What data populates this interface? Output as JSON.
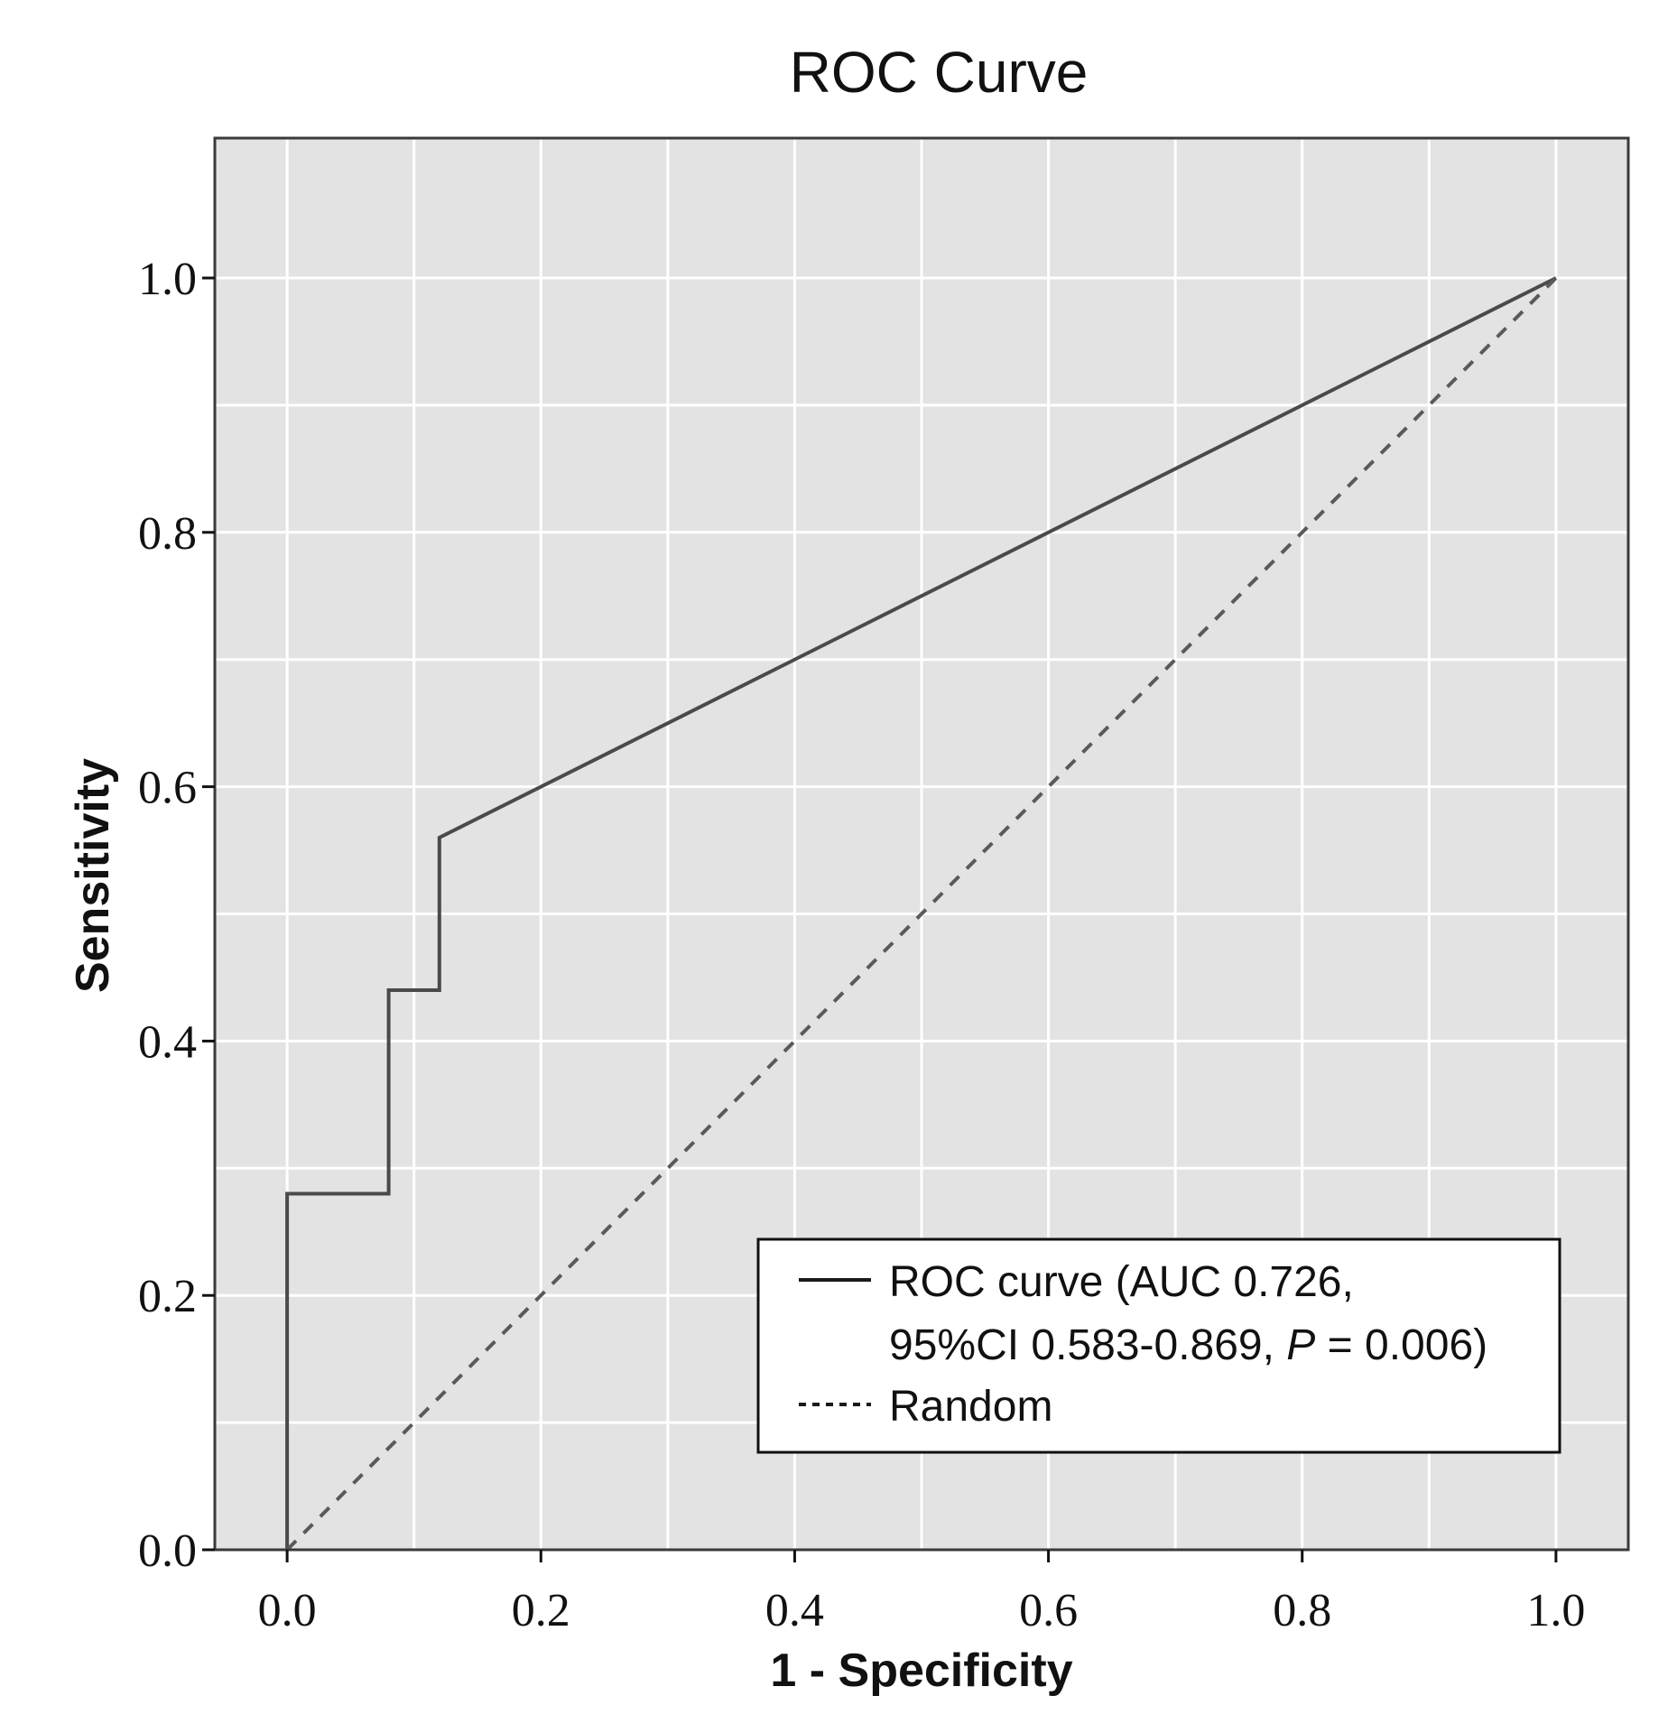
{
  "chart_data": {
    "type": "line",
    "title": "ROC Curve",
    "xlabel": "1 - Specificity",
    "ylabel": "Sensitivity",
    "xlim": [
      -0.057,
      1.057
    ],
    "ylim": [
      0,
      1.11
    ],
    "x_ticks": [
      0.0,
      0.2,
      0.4,
      0.6,
      0.8,
      1.0
    ],
    "x_tick_labels": [
      "0.0",
      "0.2",
      "0.4",
      "0.6",
      "0.8",
      "1.0"
    ],
    "y_ticks": [
      0.0,
      0.2,
      0.4,
      0.6,
      0.8,
      1.0
    ],
    "y_tick_labels": [
      "0.0",
      "0.2",
      "0.4",
      "0.6",
      "0.8",
      "1.0"
    ],
    "grid": true,
    "legend_position": "bottom-right",
    "series": [
      {
        "name": "ROC curve",
        "style": "solid",
        "color": "#4a4a4a",
        "x": [
          0.0,
          0.0,
          0.08,
          0.08,
          0.12,
          0.12,
          1.0
        ],
        "y": [
          0.0,
          0.28,
          0.28,
          0.44,
          0.44,
          0.56,
          1.0
        ]
      },
      {
        "name": "Random",
        "style": "dashed",
        "color": "#5a5a5a",
        "x": [
          0.0,
          1.0
        ],
        "y": [
          0.0,
          1.0
        ]
      }
    ],
    "legend": {
      "line1": "ROC curve (AUC 0.726,",
      "line2_prefix": "95%CI 0.583-0.869, ",
      "line2_p": "P",
      "line2_suffix": " = 0.006)",
      "random_label": "Random"
    },
    "colors": {
      "plot_background": "#e3e3e3",
      "grid": "#ffffff",
      "frame": "#3a3a3a"
    }
  }
}
